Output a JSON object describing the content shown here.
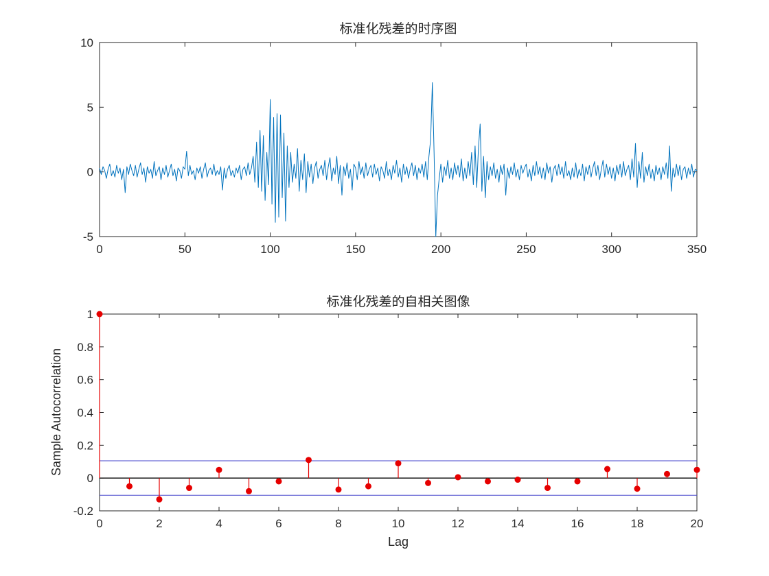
{
  "figure": {
    "background": "#ffffff"
  },
  "chart_data": [
    {
      "type": "line",
      "title": "标准化残差的时序图",
      "xlabel": "",
      "ylabel": "",
      "xlim": [
        0,
        350
      ],
      "ylim": [
        -5,
        10
      ],
      "xticks": [
        0,
        50,
        100,
        150,
        200,
        250,
        300,
        350
      ],
      "xticklabels": [
        "0",
        "50",
        "100",
        "150",
        "200",
        "250",
        "300",
        "350"
      ],
      "yticks": [
        -5,
        0,
        5,
        10
      ],
      "yticklabels": [
        "-5",
        "0",
        "5",
        "10"
      ],
      "grid": false,
      "line_color": "#0072BD",
      "x_start": 0,
      "x_step": 1,
      "values": [
        0.3,
        -0.2,
        0.4,
        0.1,
        -0.5,
        0.2,
        0.6,
        -0.3,
        0.1,
        -0.4,
        0.5,
        -0.1,
        0.3,
        -0.6,
        0.2,
        -1.6,
        0.4,
        -0.2,
        0.6,
        0.1,
        -0.3,
        0.5,
        -0.4,
        0.2,
        0.7,
        -0.2,
        0.3,
        -0.8,
        0.4,
        -0.1,
        0.2,
        -0.5,
        0.8,
        -0.3,
        0.1,
        0.4,
        -0.6,
        0.3,
        -0.2,
        0.5,
        -0.4,
        0.1,
        0.6,
        -0.3,
        0.2,
        -0.7,
        0.3,
        0.1,
        -0.5,
        0.4,
        0.2,
        1.6,
        -0.3,
        0.5,
        -0.2,
        0.1,
        -0.6,
        0.3,
        -0.1,
        0.4,
        -0.5,
        0.2,
        0.7,
        -0.4,
        0.1,
        0.3,
        -0.2,
        0.6,
        -0.3,
        0.1,
        -0.2,
        0.4,
        -1.4,
        0.3,
        -0.5,
        0.2,
        0.5,
        -0.3,
        0.1,
        -0.4,
        0.3,
        -0.1,
        0.5,
        -0.6,
        0.2,
        0.4,
        -0.3,
        0.7,
        -0.2,
        0.3,
        1.2,
        -0.8,
        2.3,
        -1.2,
        3.2,
        -1.5,
        2.8,
        -2.2,
        1.5,
        -1.0,
        5.6,
        -2.5,
        4.2,
        -3.9,
        4.5,
        -3.5,
        4.4,
        -2.0,
        3.0,
        -3.8,
        2.0,
        -1.2,
        1.5,
        -0.8,
        0.6,
        -0.5,
        1.8,
        -1.5,
        0.9,
        -0.6,
        1.4,
        -1.6,
        0.8,
        -0.4,
        0.6,
        -0.9,
        0.3,
        0.8,
        -0.5,
        0.2,
        0.5,
        -0.3,
        0.9,
        -0.6,
        0.4,
        1.1,
        -0.7,
        0.3,
        -0.2,
        1.2,
        -0.9,
        0.5,
        -1.8,
        0.4,
        -0.3,
        0.7,
        -0.5,
        0.2,
        -1.4,
        0.6,
        0.3,
        -0.6,
        0.8,
        -0.2,
        0.4,
        -0.5,
        0.7,
        -0.3,
        0.2,
        0.5,
        -0.4,
        0.6,
        -0.2,
        0.3,
        -0.7,
        0.4,
        0.1,
        -0.5,
        0.8,
        -0.3,
        0.2,
        -0.6,
        0.5,
        -0.1,
        0.9,
        -0.4,
        0.3,
        -0.8,
        0.6,
        -0.2,
        0.4,
        -0.5,
        0.2,
        0.7,
        -0.3,
        0.5,
        -0.6,
        0.3,
        -0.1,
        0.6,
        -0.4,
        0.8,
        -0.6,
        1.2,
        2.5,
        6.9,
        1.5,
        -5.5,
        -1.8,
        -0.5,
        0.6,
        -0.8,
        0.4,
        -0.3,
        0.9,
        -0.5,
        0.3,
        -0.6,
        0.7,
        -0.2,
        0.5,
        -0.4,
        1.0,
        -0.7,
        0.3,
        -0.5,
        0.8,
        -0.3,
        1.5,
        -1.0,
        2.0,
        -1.2,
        1.8,
        3.7,
        -1.5,
        1.2,
        -2.0,
        0.8,
        -0.6,
        0.4,
        -0.3,
        0.7,
        -0.5,
        0.2,
        -0.8,
        0.5,
        -0.2,
        0.6,
        -1.8,
        0.3,
        -0.5,
        0.4,
        -0.2,
        0.7,
        -0.4,
        0.2,
        -0.6,
        0.5,
        -0.1,
        0.3,
        0.6,
        -0.4,
        0.2,
        -0.7,
        0.5,
        -0.3,
        0.8,
        -0.2,
        0.4,
        -0.5,
        0.3,
        -0.6,
        0.7,
        -0.1,
        0.4,
        -0.8,
        0.2,
        0.5,
        -0.3,
        0.6,
        -0.2,
        0.4,
        -0.5,
        0.8,
        -0.3,
        0.1,
        -0.6,
        0.3,
        -0.4,
        0.7,
        -0.5,
        0.2,
        -0.3,
        0.6,
        -0.7,
        0.4,
        -0.2,
        0.5,
        -0.4,
        0.3,
        0.8,
        -0.3,
        0.5,
        -0.6,
        0.2,
        0.9,
        -0.4,
        0.6,
        -0.2,
        0.4,
        -0.5,
        0.3,
        -0.7,
        0.5,
        -0.2,
        0.6,
        -0.4,
        0.8,
        -0.3,
        0.2,
        0.5,
        -0.6,
        1.0,
        -0.4,
        2.2,
        -1.2,
        0.8,
        -0.5,
        1.5,
        -0.8,
        0.4,
        -0.3,
        0.6,
        -0.5,
        0.2,
        -0.7,
        0.5,
        -0.2,
        0.3,
        -0.6,
        0.4,
        -0.2,
        0.7,
        -0.5,
        2.0,
        -1.5,
        0.3,
        -0.4,
        0.6,
        -0.3,
        0.5,
        -0.6,
        0.2,
        0.4,
        -0.5,
        0.3,
        -0.2,
        0.6,
        -0.4,
        0.2,
        0.1
      ]
    },
    {
      "type": "stem",
      "title": "标准化残差的自相关图像",
      "xlabel": "Lag",
      "ylabel": "Sample Autocorrelation",
      "xlim": [
        0,
        20
      ],
      "ylim": [
        -0.2,
        1
      ],
      "xticks": [
        0,
        2,
        4,
        6,
        8,
        10,
        12,
        14,
        16,
        18,
        20
      ],
      "xticklabels": [
        "0",
        "2",
        "4",
        "6",
        "8",
        "10",
        "12",
        "14",
        "16",
        "18",
        "20"
      ],
      "yticks": [
        -0.2,
        0,
        0.2,
        0.4,
        0.6,
        0.8,
        1
      ],
      "yticklabels": [
        "-0.2",
        "0",
        "0.2",
        "0.4",
        "0.6",
        "0.8",
        "1"
      ],
      "grid": false,
      "stem_color": "#e60000",
      "marker_color": "#e60000",
      "bound_color": "#4444cc",
      "zero_line_color": "#000000",
      "confidence_bound_upper": 0.105,
      "confidence_bound_lower": -0.105,
      "lags": [
        0,
        1,
        2,
        3,
        4,
        5,
        6,
        7,
        8,
        9,
        10,
        11,
        12,
        13,
        14,
        15,
        16,
        17,
        18,
        19,
        20
      ],
      "acf": [
        1.0,
        -0.05,
        -0.13,
        -0.06,
        0.05,
        -0.08,
        -0.02,
        0.11,
        -0.07,
        -0.05,
        0.09,
        -0.03,
        0.005,
        -0.02,
        -0.01,
        -0.06,
        -0.02,
        0.055,
        -0.065,
        0.025,
        0.05
      ]
    }
  ]
}
